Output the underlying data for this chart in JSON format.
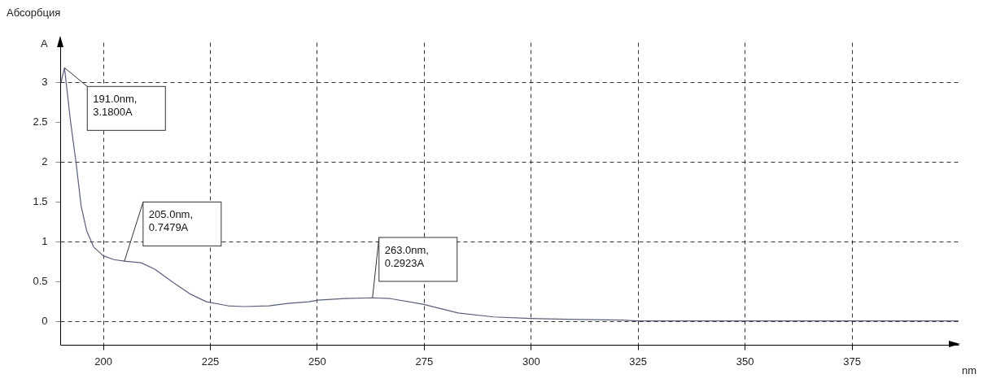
{
  "chart_data": {
    "type": "line",
    "title": "Абсорбция",
    "ylabel": "A",
    "xlabel": "nm",
    "xlim": [
      190,
      400
    ],
    "xticks": [
      200,
      225,
      250,
      275,
      300,
      325,
      350,
      375
    ],
    "ylim": [
      -0.3,
      3.5
    ],
    "yticks": [
      0,
      0.5,
      1,
      1.5,
      2,
      2.5,
      3
    ],
    "grid": true,
    "line_style": "solid",
    "marker": "none",
    "series": [
      {
        "color": "#5a5f7a",
        "x": [
          190.2,
          191,
          192.4,
          193.7,
          194.9,
          196.2,
          197.8,
          200,
          202.5,
          205,
          208.9,
          212.1,
          216.5,
          220.3,
          224.2,
          229.2,
          233,
          238.8,
          243.2,
          248.1,
          250.2,
          256.4,
          263,
          267.2,
          274.8,
          283,
          291.3,
          299.9,
          308.5,
          321.2,
          325,
          400
        ],
        "values": [
          3.0,
          3.18,
          2.51,
          1.99,
          1.44,
          1.13,
          0.93,
          0.82,
          0.77,
          0.75,
          0.73,
          0.65,
          0.48,
          0.34,
          0.24,
          0.19,
          0.18,
          0.19,
          0.22,
          0.24,
          0.26,
          0.28,
          0.29,
          0.28,
          0.21,
          0.1,
          0.05,
          0.03,
          0.02,
          0.01,
          0,
          0
        ]
      }
    ],
    "annotations": [
      {
        "text": "191.0nm,\n3.1800A",
        "x": 191,
        "y": 3.18
      },
      {
        "text": "205.0nm,\n0.7479A",
        "x": 205,
        "y": 0.7479
      },
      {
        "text": "263.0nm,\n0.2923A",
        "x": 263,
        "y": 0.2923
      }
    ]
  }
}
